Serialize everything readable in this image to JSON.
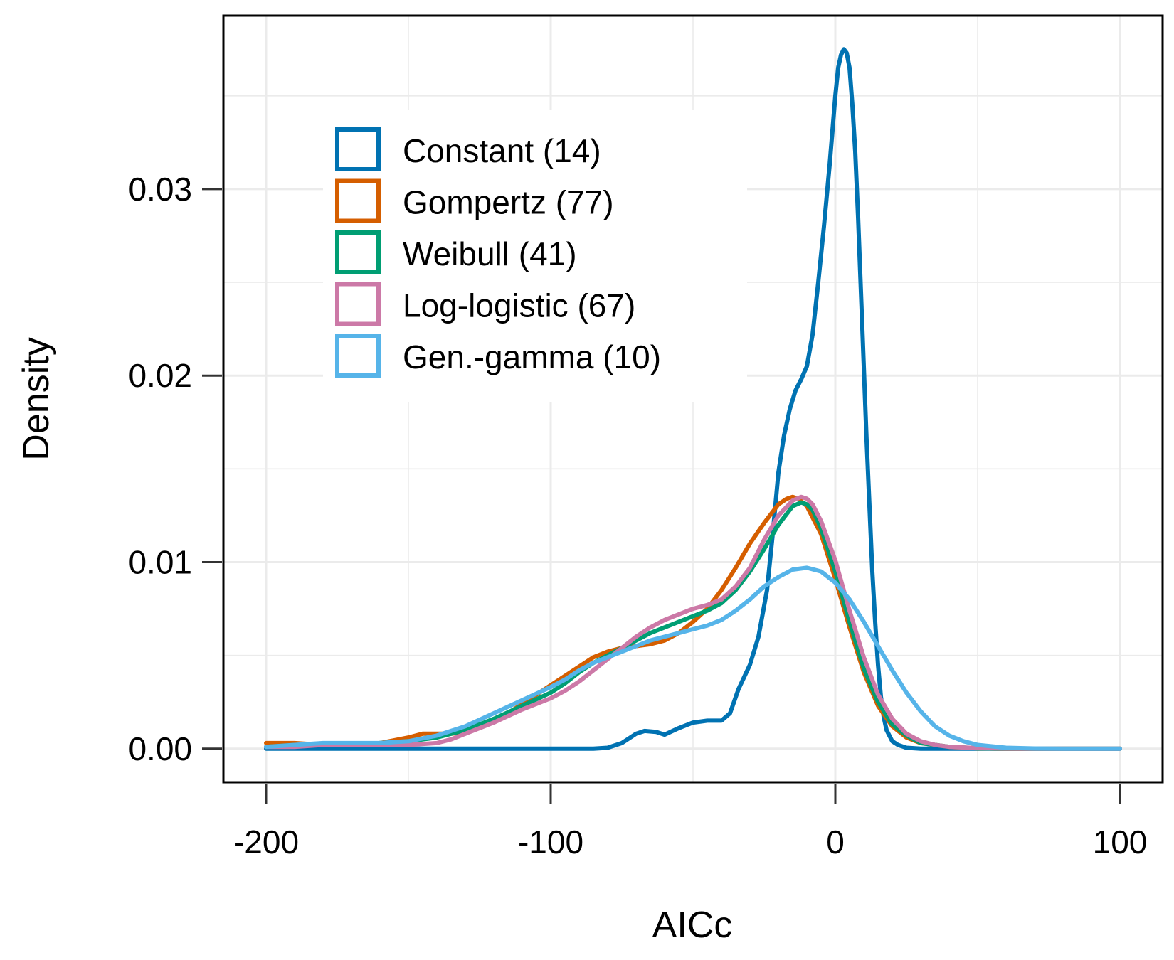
{
  "chart_data": {
    "type": "line",
    "title": "",
    "xlabel": "AICc",
    "ylabel": "Density",
    "xlim": [
      -215,
      115
    ],
    "ylim": [
      -0.0018,
      0.0393
    ],
    "xticks": [
      -200,
      -100,
      0,
      100
    ],
    "xtick_labels": [
      "-200",
      "-100",
      "0",
      "100"
    ],
    "yticks": [
      0.0,
      0.01,
      0.02,
      0.03
    ],
    "ytick_labels": [
      "0.00",
      "0.01",
      "0.02",
      "0.03"
    ],
    "grid": true,
    "legend_position": "top-left",
    "series": [
      {
        "name": "Constant (14)",
        "color": "#0072B2",
        "x": [
          -200,
          -150,
          -100,
          -85,
          -80,
          -75,
          -70,
          -67,
          -63,
          -60,
          -55,
          -50,
          -45,
          -42,
          -40,
          -37,
          -34,
          -30,
          -27,
          -24,
          -22,
          -20,
          -18,
          -16,
          -14,
          -12,
          -10,
          -8,
          -6,
          -4,
          -2,
          0,
          1,
          2,
          3,
          4,
          5,
          6,
          7,
          8,
          9,
          10,
          11,
          12,
          13,
          14,
          15,
          16,
          17,
          18,
          20,
          22,
          25,
          30,
          40,
          100
        ],
        "y": [
          0,
          0,
          0,
          0,
          5e-05,
          0.0003,
          0.0008,
          0.00095,
          0.0009,
          0.00075,
          0.0011,
          0.0014,
          0.0015,
          0.0015,
          0.0015,
          0.0019,
          0.0032,
          0.0045,
          0.006,
          0.0085,
          0.0115,
          0.0148,
          0.0168,
          0.0182,
          0.0192,
          0.0198,
          0.0205,
          0.0222,
          0.025,
          0.028,
          0.0313,
          0.035,
          0.0365,
          0.0372,
          0.0375,
          0.0373,
          0.0365,
          0.0345,
          0.032,
          0.0285,
          0.0245,
          0.0205,
          0.0165,
          0.013,
          0.0095,
          0.0068,
          0.0045,
          0.0028,
          0.0017,
          0.001,
          0.0004,
          0.0002,
          5e-05,
          0,
          0,
          0
        ]
      },
      {
        "name": "Gompertz (77)",
        "color": "#D55E00",
        "x": [
          -200,
          -190,
          -180,
          -170,
          -160,
          -150,
          -145,
          -140,
          -135,
          -130,
          -125,
          -120,
          -115,
          -110,
          -105,
          -100,
          -95,
          -90,
          -85,
          -80,
          -75,
          -70,
          -65,
          -60,
          -55,
          -50,
          -45,
          -40,
          -35,
          -30,
          -25,
          -20,
          -17,
          -15,
          -13,
          -10,
          -5,
          0,
          5,
          10,
          15,
          20,
          25,
          30,
          35,
          40,
          50,
          60,
          70,
          80,
          100
        ],
        "y": [
          0.0003,
          0.0003,
          0.0002,
          0.0002,
          0.0003,
          0.0006,
          0.0008,
          0.0008,
          0.0008,
          0.0009,
          0.0011,
          0.0015,
          0.0019,
          0.0024,
          0.0029,
          0.0034,
          0.0039,
          0.0044,
          0.0049,
          0.0052,
          0.0054,
          0.0055,
          0.0056,
          0.0058,
          0.0062,
          0.0068,
          0.0075,
          0.0085,
          0.0097,
          0.011,
          0.0121,
          0.0131,
          0.0134,
          0.0135,
          0.0134,
          0.013,
          0.0115,
          0.0091,
          0.0065,
          0.0041,
          0.0023,
          0.0012,
          0.0006,
          0.0003,
          0.0002,
          0.0001,
          2e-05,
          0,
          0,
          0,
          0
        ]
      },
      {
        "name": "Weibull (41)",
        "color": "#009E73",
        "x": [
          -200,
          -190,
          -180,
          -170,
          -160,
          -150,
          -140,
          -130,
          -120,
          -110,
          -100,
          -95,
          -90,
          -85,
          -80,
          -75,
          -70,
          -65,
          -60,
          -55,
          -50,
          -45,
          -40,
          -35,
          -30,
          -25,
          -20,
          -15,
          -12,
          -10,
          -8,
          -5,
          0,
          5,
          10,
          15,
          20,
          25,
          30,
          35,
          40,
          50,
          60,
          70,
          80,
          100
        ],
        "y": [
          0.0001,
          0.0002,
          0.0002,
          0.0002,
          0.0003,
          0.0004,
          0.0006,
          0.001,
          0.0016,
          0.0023,
          0.003,
          0.0035,
          0.0041,
          0.0046,
          0.005,
          0.0054,
          0.0058,
          0.0062,
          0.0065,
          0.0068,
          0.0071,
          0.0074,
          0.0078,
          0.0085,
          0.0095,
          0.0107,
          0.012,
          0.013,
          0.0132,
          0.0131,
          0.0128,
          0.0118,
          0.0095,
          0.0068,
          0.0043,
          0.0025,
          0.0013,
          0.0007,
          0.0003,
          0.0002,
          0.0001,
          2e-05,
          0,
          0,
          0,
          0
        ]
      },
      {
        "name": "Log-logistic (67)",
        "color": "#CC79A7",
        "x": [
          -200,
          -190,
          -180,
          -170,
          -160,
          -150,
          -140,
          -135,
          -130,
          -120,
          -110,
          -100,
          -95,
          -90,
          -85,
          -80,
          -75,
          -70,
          -65,
          -60,
          -55,
          -50,
          -45,
          -40,
          -35,
          -30,
          -25,
          -20,
          -15,
          -12,
          -10,
          -8,
          -5,
          0,
          5,
          10,
          15,
          20,
          25,
          30,
          35,
          40,
          50,
          60,
          70,
          80,
          100
        ],
        "y": [
          0.0001,
          0.0001,
          0.0002,
          0.0002,
          0.0002,
          0.0002,
          0.0003,
          0.0005,
          0.0008,
          0.0014,
          0.0021,
          0.0027,
          0.0031,
          0.0036,
          0.0042,
          0.0048,
          0.0054,
          0.006,
          0.0065,
          0.0069,
          0.0072,
          0.0075,
          0.0077,
          0.008,
          0.0087,
          0.0097,
          0.0112,
          0.0125,
          0.0133,
          0.0135,
          0.0134,
          0.0131,
          0.0122,
          0.0101,
          0.0074,
          0.0049,
          0.0029,
          0.0016,
          0.0008,
          0.0004,
          0.0002,
          0.0001,
          3e-05,
          1e-05,
          0,
          0,
          0
        ]
      },
      {
        "name": "Gen.-gamma (10)",
        "color": "#56B4E9",
        "x": [
          -200,
          -190,
          -180,
          -170,
          -160,
          -150,
          -140,
          -130,
          -120,
          -110,
          -100,
          -95,
          -90,
          -85,
          -80,
          -75,
          -70,
          -65,
          -60,
          -55,
          -50,
          -45,
          -40,
          -35,
          -30,
          -25,
          -20,
          -15,
          -10,
          -5,
          0,
          5,
          10,
          15,
          20,
          25,
          30,
          35,
          40,
          45,
          50,
          60,
          70,
          80,
          90,
          100
        ],
        "y": [
          0.0001,
          0.0002,
          0.0003,
          0.0003,
          0.0003,
          0.0004,
          0.0007,
          0.0012,
          0.0019,
          0.0026,
          0.0033,
          0.0037,
          0.0042,
          0.0046,
          0.0049,
          0.0052,
          0.0055,
          0.0058,
          0.006,
          0.0062,
          0.0064,
          0.0066,
          0.0069,
          0.0074,
          0.008,
          0.0087,
          0.0092,
          0.0096,
          0.0097,
          0.0095,
          0.0089,
          0.008,
          0.0068,
          0.0055,
          0.0042,
          0.003,
          0.002,
          0.0012,
          0.0007,
          0.0004,
          0.0002,
          5e-05,
          1e-05,
          0,
          0,
          0
        ]
      }
    ]
  }
}
